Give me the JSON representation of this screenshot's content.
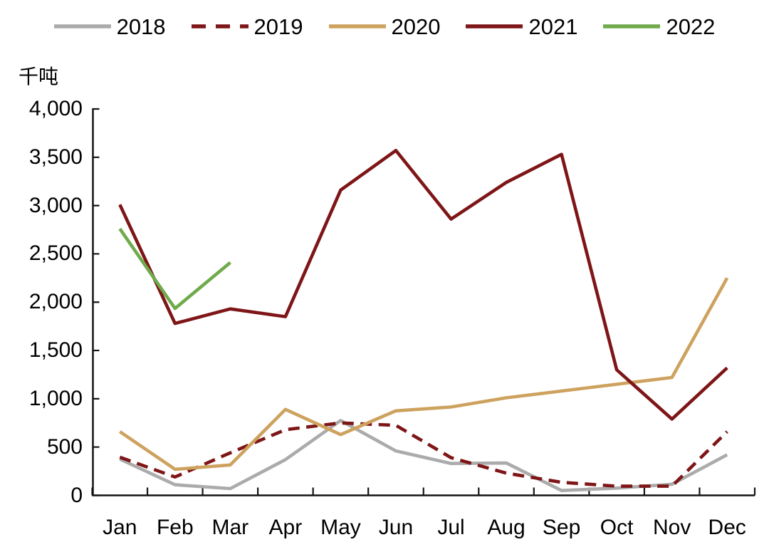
{
  "chart_data": {
    "type": "line",
    "title": "",
    "unit_label": "千吨",
    "legend_position": "top",
    "grid": false,
    "categories": [
      "Jan",
      "Feb",
      "Mar",
      "Apr",
      "May",
      "Jun",
      "Jul",
      "Aug",
      "Sep",
      "Oct",
      "Nov",
      "Dec"
    ],
    "series": [
      {
        "name": "2018",
        "color": "#ABABAB",
        "style": "solid",
        "values": [
          375,
          110,
          70,
          370,
          775,
          460,
          330,
          335,
          50,
          75,
          115,
          420
        ]
      },
      {
        "name": "2019",
        "color": "#7E1517",
        "style": "dashed",
        "values": [
          395,
          190,
          440,
          680,
          750,
          725,
          390,
          230,
          135,
          95,
          95,
          660
        ]
      },
      {
        "name": "2020",
        "color": "#CDA25E",
        "style": "solid",
        "values": [
          660,
          270,
          315,
          890,
          630,
          875,
          915,
          1010,
          1080,
          1150,
          1220,
          2250
        ]
      },
      {
        "name": "2021",
        "color": "#7E1517",
        "style": "solid",
        "values": [
          3010,
          1780,
          1930,
          1850,
          3160,
          3570,
          2860,
          3240,
          3530,
          1300,
          790,
          1320
        ]
      },
      {
        "name": "2022",
        "color": "#6FAA4B",
        "style": "solid",
        "values": [
          2760,
          1935,
          2410,
          null,
          null,
          null,
          null,
          null,
          null,
          null,
          null,
          null
        ]
      }
    ],
    "ylim": [
      0,
      4000
    ],
    "ytick_step": 500,
    "ytick_labels": [
      "4,000",
      "3,500",
      "3,000",
      "2,500",
      "2,000",
      "1,500",
      "1,000",
      "500",
      "0"
    ],
    "axis_color": "#141414",
    "text_color": "#000000"
  }
}
